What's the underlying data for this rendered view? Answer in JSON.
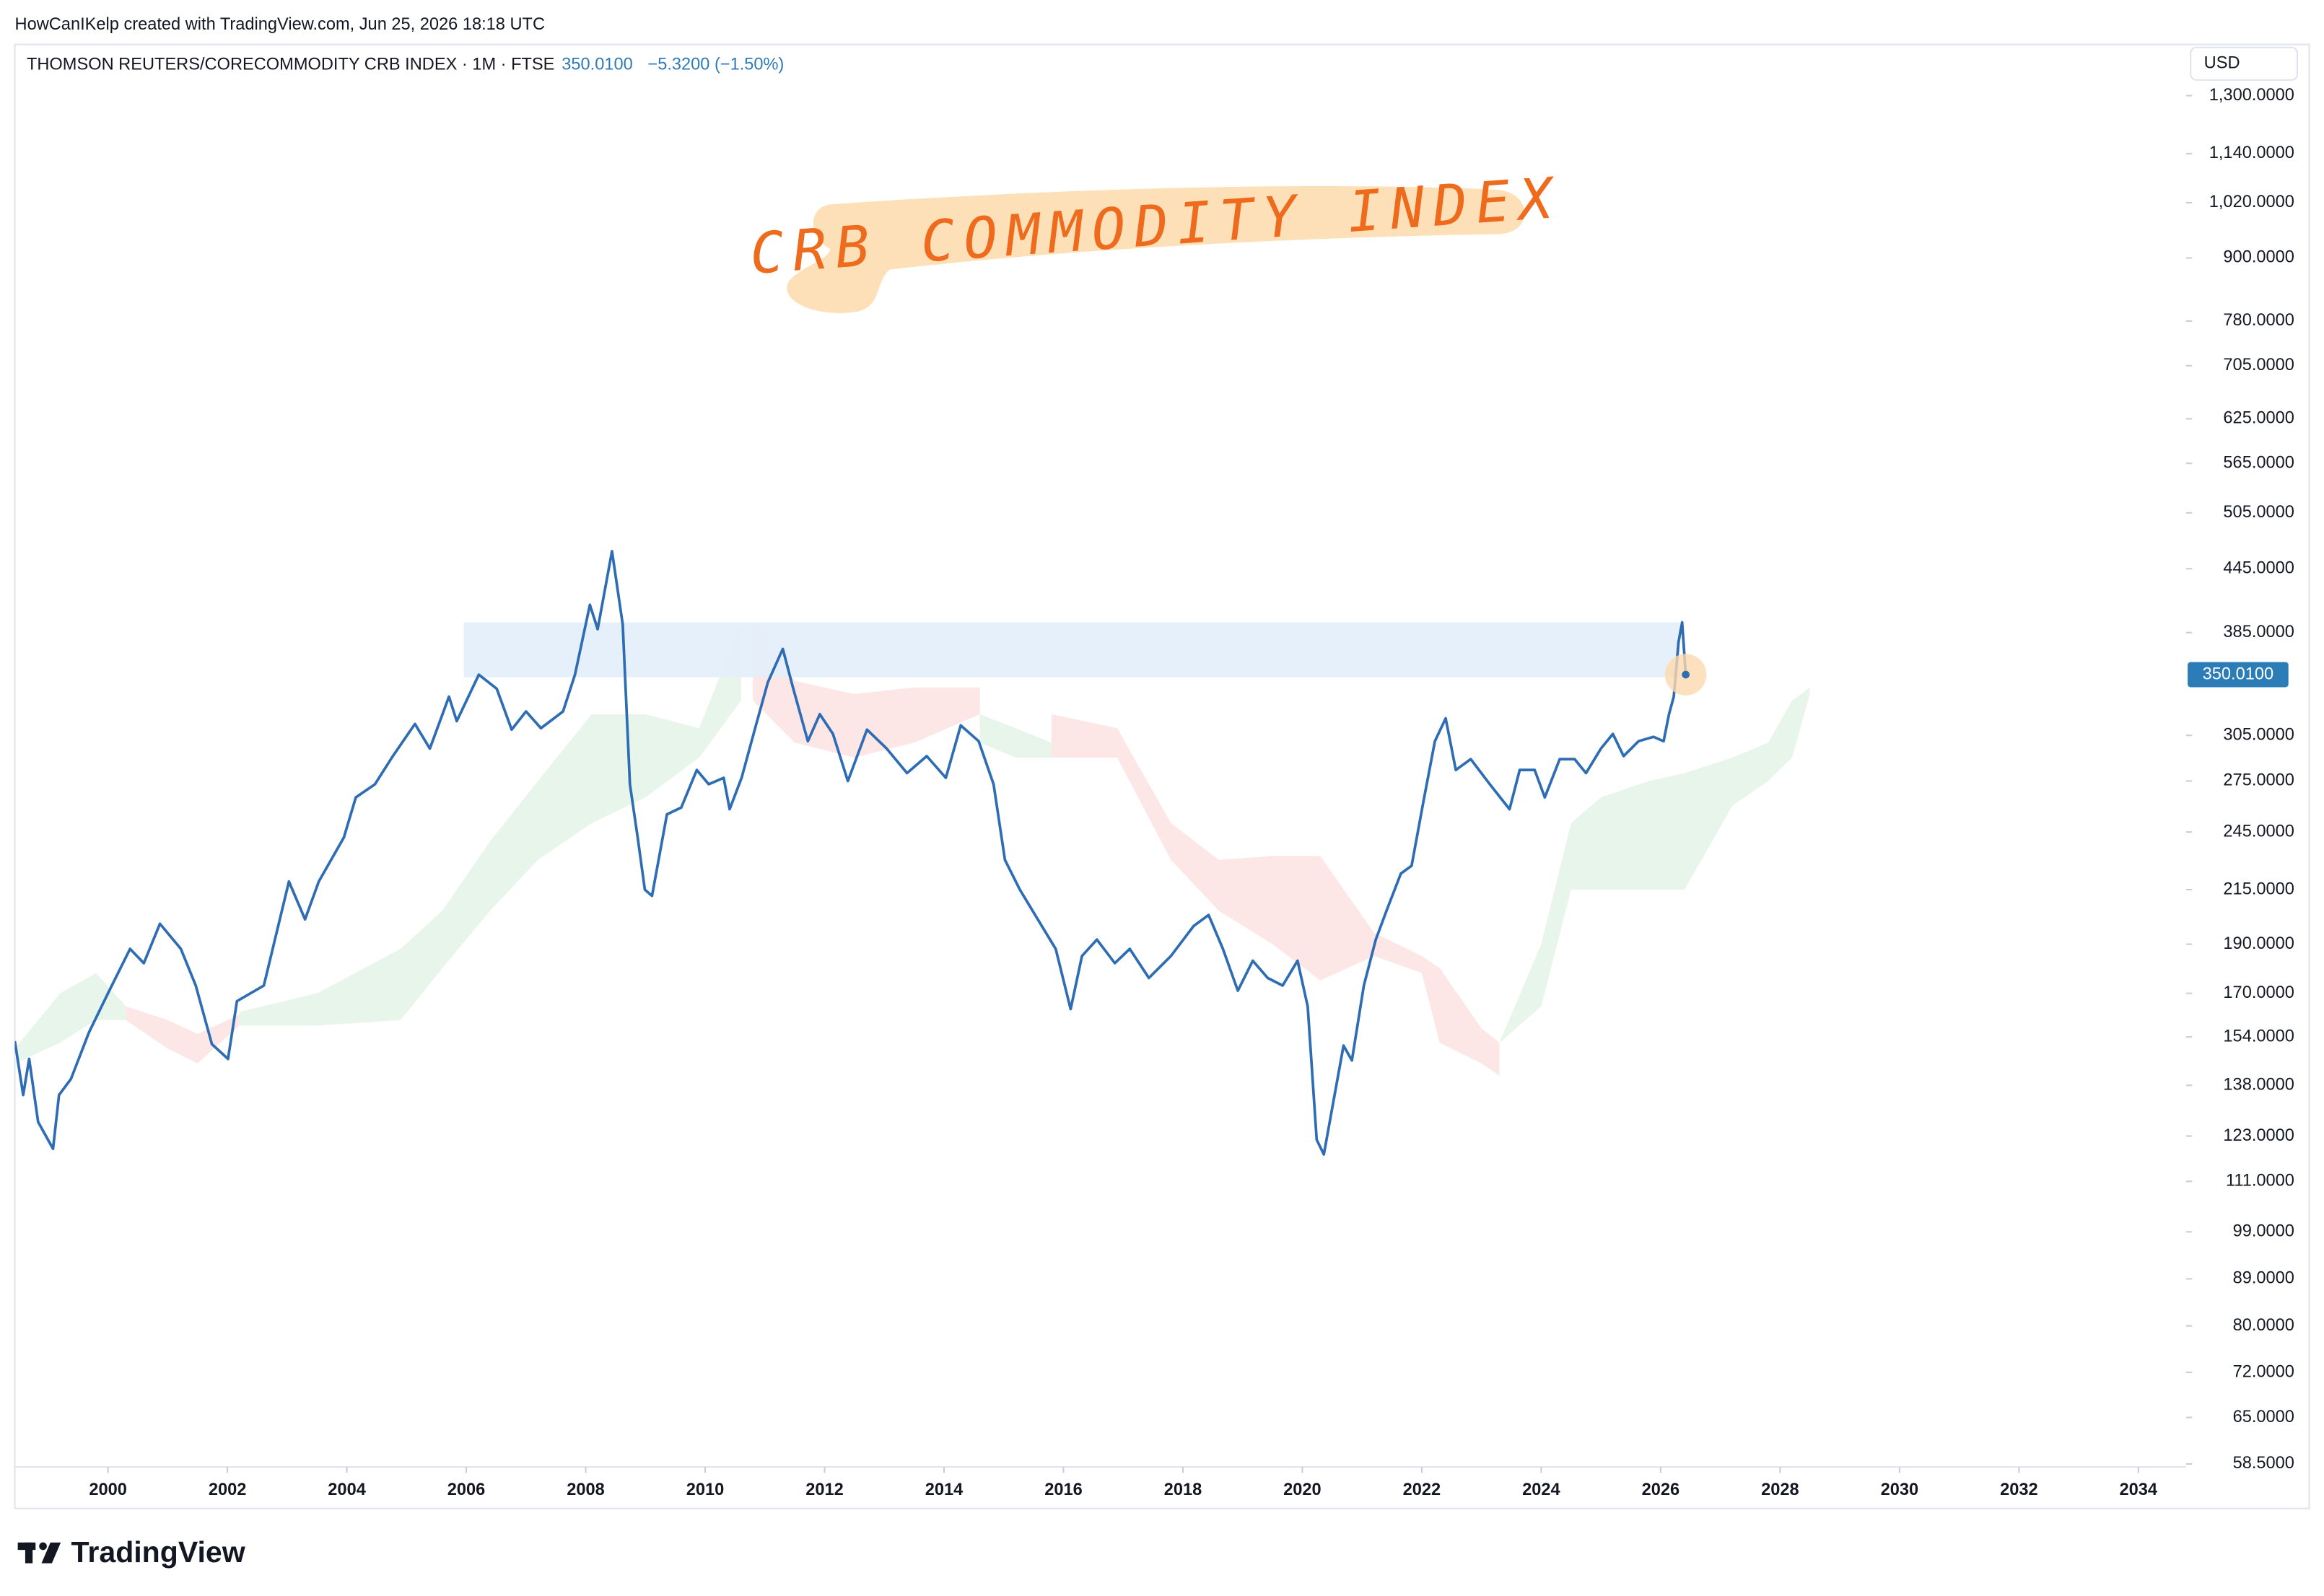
{
  "header": {
    "attribution": "HowCanIKelp created with TradingView.com, Jun 25, 2026 18:18 UTC",
    "symbol": "THOMSON REUTERS/CORECOMMODITY CRB INDEX · 1M · FTSE",
    "change": "−5.3200 (−1.50%)",
    "currency": "USD"
  },
  "chart_data": {
    "type": "line",
    "title": "CRB COMMODITY INDEX",
    "log_scale": true,
    "grid": false,
    "xlim": [
      1998.44,
      2034.8
    ],
    "ylim": [
      58.5,
      1460
    ],
    "xticks": [
      2000,
      2002,
      2004,
      2006,
      2008,
      2010,
      2012,
      2014,
      2016,
      2018,
      2020,
      2022,
      2024,
      2026,
      2028,
      2030,
      2032,
      2034
    ],
    "yticks": [
      {
        "value": 1300,
        "label": "1,300.0000"
      },
      {
        "value": 1140,
        "label": "1,140.0000"
      },
      {
        "value": 1020,
        "label": "1,020.0000"
      },
      {
        "value": 900,
        "label": "900.0000"
      },
      {
        "value": 780,
        "label": "780.0000"
      },
      {
        "value": 705,
        "label": "705.0000"
      },
      {
        "value": 625,
        "label": "625.0000"
      },
      {
        "value": 565,
        "label": "565.0000"
      },
      {
        "value": 505,
        "label": "505.0000"
      },
      {
        "value": 445,
        "label": "445.0000"
      },
      {
        "value": 385,
        "label": "385.0000"
      },
      {
        "value": 305,
        "label": "305.0000"
      },
      {
        "value": 275,
        "label": "275.0000"
      },
      {
        "value": 245,
        "label": "245.0000"
      },
      {
        "value": 215,
        "label": "215.0000"
      },
      {
        "value": 190,
        "label": "190.0000"
      },
      {
        "value": 170,
        "label": "170.0000"
      },
      {
        "value": 154,
        "label": "154.0000"
      },
      {
        "value": 138,
        "label": "138.0000"
      },
      {
        "value": 123,
        "label": "123.0000"
      },
      {
        "value": 111,
        "label": "111.0000"
      },
      {
        "value": 99,
        "label": "99.0000"
      },
      {
        "value": 89,
        "label": "89.0000"
      },
      {
        "value": 80,
        "label": "80.0000"
      },
      {
        "value": 72,
        "label": "72.0000"
      },
      {
        "value": 65,
        "label": "65.0000"
      },
      {
        "value": 58.5,
        "label": "58.5000"
      }
    ],
    "series": [
      {
        "color": "#2e6db4",
        "x": [
          1998.44,
          1998.58,
          1998.68,
          1998.83,
          1999.08,
          1999.18,
          1999.38,
          1999.68,
          2000.0,
          2000.37,
          2000.6,
          2000.87,
          2001.22,
          2001.47,
          2001.74,
          2002.01,
          2002.16,
          2002.61,
          2003.03,
          2003.3,
          2003.53,
          2003.95,
          2004.15,
          2004.47,
          2004.77,
          2005.14,
          2005.39,
          2005.71,
          2005.84,
          2006.21,
          2006.51,
          2006.76,
          2007.0,
          2007.25,
          2007.62,
          2007.82,
          2008.07,
          2008.2,
          2008.44,
          2008.62,
          2008.74,
          2008.87,
          2008.99,
          2009.11,
          2009.36,
          2009.6,
          2009.86,
          2010.06,
          2010.31,
          2010.41,
          2010.61,
          2010.85,
          2011.05,
          2011.3,
          2011.47,
          2011.72,
          2011.92,
          2012.14,
          2012.39,
          2012.71,
          2013.04,
          2013.38,
          2013.71,
          2014.03,
          2014.28,
          2014.58,
          2014.83,
          2015.02,
          2015.27,
          2015.57,
          2015.87,
          2016.12,
          2016.31,
          2016.56,
          2016.86,
          2017.11,
          2017.43,
          2017.8,
          2018.18,
          2018.43,
          2018.67,
          2018.92,
          2019.17,
          2019.42,
          2019.67,
          2019.92,
          2020.09,
          2020.24,
          2020.36,
          2020.54,
          2020.69,
          2020.83,
          2021.03,
          2021.23,
          2021.41,
          2021.65,
          2021.83,
          2022.03,
          2022.22,
          2022.4,
          2022.57,
          2022.82,
          2023.14,
          2023.47,
          2023.64,
          2023.89,
          2024.06,
          2024.31,
          2024.56,
          2024.75,
          2025.0,
          2025.2,
          2025.38,
          2025.63,
          2025.88,
          2026.05,
          2026.14,
          2026.22,
          2026.3,
          2026.36,
          2026.42
        ],
        "values": [
          152.5,
          135,
          146.5,
          127,
          119.5,
          135,
          140,
          155.5,
          170,
          188,
          182,
          199,
          188,
          173,
          151.5,
          146.5,
          167,
          173,
          219,
          201,
          219,
          242,
          265,
          273,
          291,
          313,
          296,
          333,
          315,
          350,
          339,
          309,
          322,
          310,
          322,
          350,
          410,
          388,
          463,
          392,
          273,
          242,
          215,
          212,
          255,
          259,
          282,
          273,
          277,
          258,
          277,
          312,
          344,
          371,
          340,
          301,
          320,
          306,
          275,
          309,
          296,
          280,
          291,
          277,
          312,
          301,
          273,
          230,
          215,
          201,
          188,
          164,
          185,
          192,
          182,
          188,
          176,
          185,
          198,
          203,
          188,
          171,
          183,
          176,
          173,
          183,
          165,
          122,
          118,
          135,
          151,
          146,
          173,
          192,
          205,
          223,
          227,
          263,
          301,
          317,
          282,
          289,
          273,
          258,
          282,
          282,
          265,
          289,
          289,
          280,
          296,
          306,
          291,
          301,
          304,
          301,
          320,
          333,
          377,
          394,
          350.01
        ]
      }
    ],
    "last_price": {
      "value": 350.01,
      "label": "350.0100"
    },
    "zone": {
      "color": "#e3eefb",
      "x": [
        2005.96,
        2026.32
      ],
      "y": [
        348,
        394
      ]
    },
    "cloud": [
      {
        "color": "#e8f5ea",
        "x": [
          1998.44,
          1999.2,
          1999.8,
          2000.3
        ],
        "upper": [
          150,
          170,
          178,
          165
        ],
        "lower": [
          145,
          152,
          160,
          160
        ]
      },
      {
        "color": "#fde6e6",
        "x": [
          2000.3,
          2001.0,
          2001.5,
          2002.2
        ],
        "upper": [
          165,
          160,
          155,
          162
        ],
        "lower": [
          160,
          150,
          145,
          158
        ]
      },
      {
        "color": "#e8f5ea",
        "x": [
          2002.2,
          2003.5,
          2004.9,
          2005.6,
          2006.4,
          2007.2,
          2008.1,
          2009.0,
          2009.9,
          2010.6
        ],
        "upper": [
          163,
          170,
          188,
          205,
          240,
          275,
          320,
          320,
          310,
          393
        ],
        "lower": [
          158,
          158,
          160,
          180,
          205,
          230,
          250,
          265,
          290,
          330
        ]
      },
      {
        "color": "#fde6e6",
        "x": [
          2010.8,
          2011.5,
          2012.5,
          2013.5,
          2014.6
        ],
        "upper": [
          395,
          345,
          335,
          340,
          340
        ],
        "lower": [
          330,
          300,
          290,
          300,
          320
        ]
      },
      {
        "color": "#e8f5ea",
        "x": [
          2014.6,
          2015.2,
          2015.8
        ],
        "upper": [
          320,
          310,
          300
        ],
        "lower": [
          300,
          290,
          290
        ]
      },
      {
        "color": "#fde6e6",
        "x": [
          2015.8,
          2016.9,
          2017.8,
          2018.6,
          2019.5,
          2020.3,
          2021.2,
          2022.0,
          2022.3,
          2023.0,
          2023.3
        ],
        "upper": [
          320,
          310,
          250,
          230,
          232,
          232,
          195,
          185,
          180,
          157,
          152
        ],
        "lower": [
          290,
          290,
          230,
          205,
          190,
          175,
          185,
          178,
          152,
          145,
          141
        ]
      },
      {
        "color": "#e8f5ea",
        "x": [
          2023.3,
          2024.0,
          2024.5,
          2025.0,
          2025.8,
          2026.4,
          2027.2,
          2027.8,
          2028.2,
          2028.5
        ],
        "upper": [
          152,
          190,
          250,
          265,
          275,
          280,
          290,
          300,
          330,
          340
        ],
        "lower": [
          152,
          165,
          215,
          215,
          215,
          215,
          260,
          275,
          290,
          335
        ]
      }
    ]
  },
  "footer": {
    "logo": "TradingView"
  }
}
